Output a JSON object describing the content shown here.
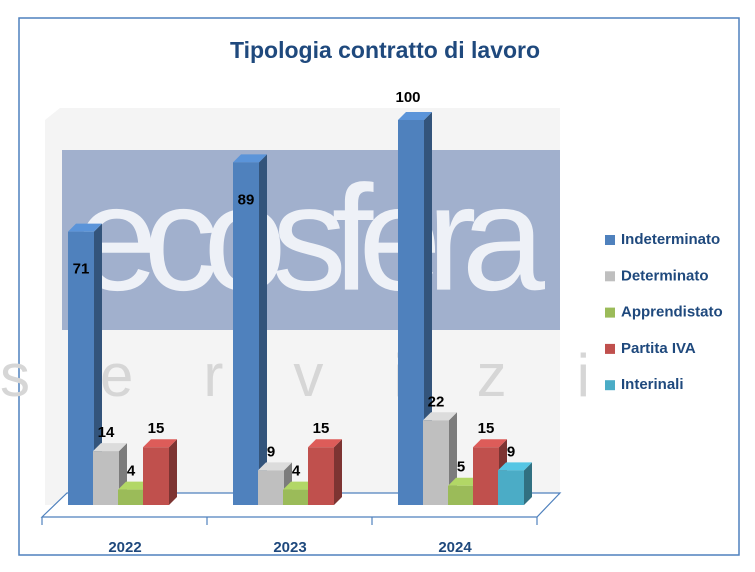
{
  "chart_data": {
    "type": "bar3d",
    "title": "Tipologia contratto di lavoro",
    "categories": [
      "2022",
      "2023",
      "2024"
    ],
    "series": [
      {
        "name": "Indeterminato",
        "color": "#4f81bd",
        "values": [
          71,
          89,
          100
        ]
      },
      {
        "name": "Determinato",
        "color": "#bfbfbf",
        "values": [
          14,
          9,
          22
        ]
      },
      {
        "name": "Apprendistato",
        "color": "#9bbb59",
        "values": [
          4,
          4,
          5
        ]
      },
      {
        "name": "Partita IVA",
        "color": "#c0504d",
        "values": [
          15,
          15,
          15
        ]
      },
      {
        "name": "Interinali",
        "color": "#4bacc6",
        "values": [
          null,
          null,
          9
        ]
      }
    ],
    "legend": "right",
    "watermark": [
      "ecosfera",
      "servizi"
    ]
  }
}
